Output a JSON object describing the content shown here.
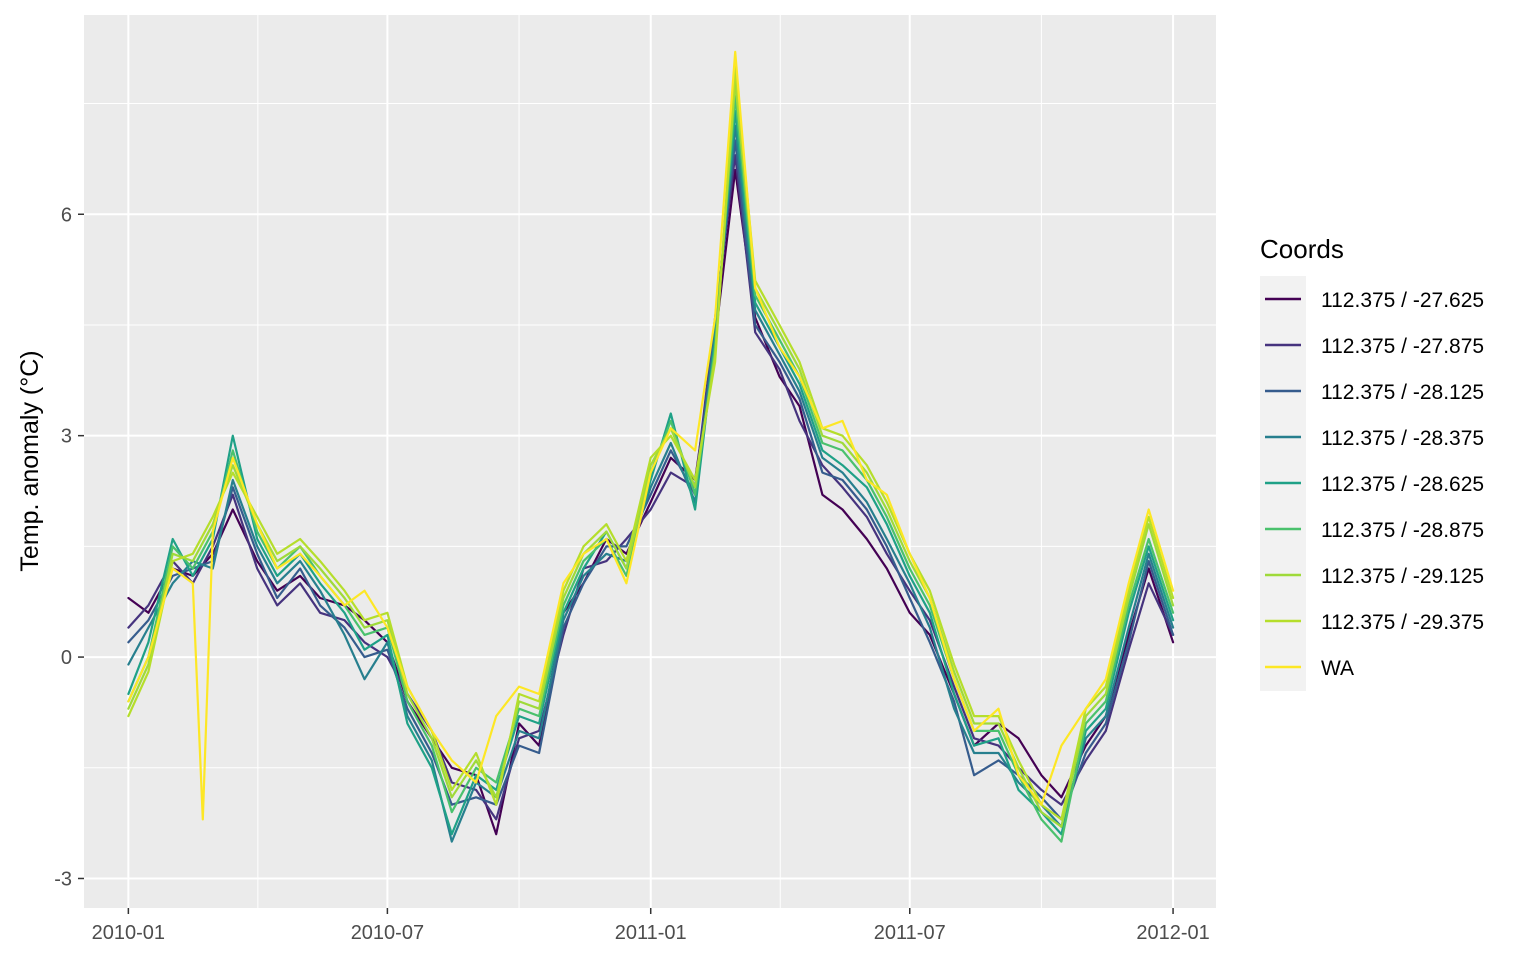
{
  "chart_data": {
    "type": "line",
    "title": "",
    "xlabel": "",
    "ylabel": "Temp. anomaly (°C)",
    "x_ticks": [
      "2010-01",
      "2010-07",
      "2011-01",
      "2011-07",
      "2012-01"
    ],
    "y_ticks": [
      "-3",
      "0",
      "3",
      "6"
    ],
    "xlim": [
      "2009-12-01",
      "2012-01-31"
    ],
    "ylim": [
      -3.4,
      8.7
    ],
    "grid": true,
    "legend": {
      "title": "Coords",
      "position": "right"
    },
    "series": [
      {
        "name": "112.375 / -27.625",
        "color": "#440154",
        "x": [
          "2010-01-01",
          "2010-01-15",
          "2010-02-01",
          "2010-02-15",
          "2010-03-01",
          "2010-03-15",
          "2010-04-01",
          "2010-04-15",
          "2010-05-01",
          "2010-05-15",
          "2010-06-01",
          "2010-06-15",
          "2010-07-01",
          "2010-07-15",
          "2010-08-01",
          "2010-08-15",
          "2010-09-01",
          "2010-09-15",
          "2010-10-01",
          "2010-10-15",
          "2010-11-01",
          "2010-11-15",
          "2010-12-01",
          "2010-12-15",
          "2011-01-01",
          "2011-01-15",
          "2011-02-01",
          "2011-02-15",
          "2011-03-01",
          "2011-03-15",
          "2011-04-01",
          "2011-04-15",
          "2011-05-01",
          "2011-05-15",
          "2011-06-01",
          "2011-06-15",
          "2011-07-01",
          "2011-07-15",
          "2011-08-01",
          "2011-08-15",
          "2011-09-01",
          "2011-09-15",
          "2011-10-01",
          "2011-10-15",
          "2011-11-01",
          "2011-11-15",
          "2011-12-01",
          "2011-12-15",
          "2012-01-01"
        ],
        "y": [
          0.8,
          0.6,
          1.2,
          1.1,
          1.4,
          2.0,
          1.3,
          0.9,
          1.1,
          0.8,
          0.7,
          0.5,
          0.2,
          -0.6,
          -1.1,
          -1.5,
          -1.6,
          -2.4,
          -0.9,
          -1.2,
          0.6,
          1.0,
          1.6,
          1.4,
          2.1,
          2.7,
          2.4,
          4.3,
          6.6,
          4.6,
          3.8,
          3.4,
          2.2,
          2.0,
          1.6,
          1.2,
          0.6,
          0.3,
          -0.5,
          -1.2,
          -0.9,
          -1.1,
          -1.6,
          -1.9,
          -1.2,
          -0.8,
          0.3,
          1.2,
          0.2
        ]
      },
      {
        "name": "112.375 / -27.875",
        "color": "#46337e",
        "x": [
          "2010-01-01",
          "2010-01-15",
          "2010-02-01",
          "2010-02-15",
          "2010-03-01",
          "2010-03-15",
          "2010-04-01",
          "2010-04-15",
          "2010-05-01",
          "2010-05-15",
          "2010-06-01",
          "2010-06-15",
          "2010-07-01",
          "2010-07-15",
          "2010-08-01",
          "2010-08-15",
          "2010-09-01",
          "2010-09-15",
          "2010-10-01",
          "2010-10-15",
          "2010-11-01",
          "2010-11-15",
          "2010-12-01",
          "2010-12-15",
          "2011-01-01",
          "2011-01-15",
          "2011-02-01",
          "2011-02-15",
          "2011-03-01",
          "2011-03-15",
          "2011-04-01",
          "2011-04-15",
          "2011-05-01",
          "2011-05-15",
          "2011-06-01",
          "2011-06-15",
          "2011-07-01",
          "2011-07-15",
          "2011-08-01",
          "2011-08-15",
          "2011-09-01",
          "2011-09-15",
          "2011-10-01",
          "2011-10-15",
          "2011-11-01",
          "2011-11-15",
          "2011-12-01",
          "2011-12-15",
          "2012-01-01"
        ],
        "y": [
          0.4,
          0.7,
          1.3,
          1.0,
          1.5,
          2.2,
          1.2,
          0.7,
          1.0,
          0.6,
          0.5,
          0.2,
          0.0,
          -0.5,
          -1.0,
          -1.7,
          -1.8,
          -2.2,
          -1.1,
          -1.0,
          0.3,
          1.2,
          1.3,
          1.6,
          2.0,
          2.5,
          2.3,
          4.6,
          6.8,
          4.4,
          3.9,
          3.2,
          2.6,
          2.3,
          1.9,
          1.4,
          0.9,
          0.5,
          -0.4,
          -1.1,
          -1.2,
          -1.5,
          -1.8,
          -2.0,
          -1.4,
          -1.0,
          0.1,
          1.0,
          0.3
        ]
      },
      {
        "name": "112.375 / -28.125",
        "color": "#365c8d",
        "x": [
          "2010-01-01",
          "2010-01-15",
          "2010-02-01",
          "2010-02-15",
          "2010-03-01",
          "2010-03-15",
          "2010-04-01",
          "2010-04-15",
          "2010-05-01",
          "2010-05-15",
          "2010-06-01",
          "2010-06-15",
          "2010-07-01",
          "2010-07-15",
          "2010-08-01",
          "2010-08-15",
          "2010-09-01",
          "2010-09-15",
          "2010-10-01",
          "2010-10-15",
          "2010-11-01",
          "2010-11-15",
          "2010-12-01",
          "2010-12-15",
          "2011-01-01",
          "2011-01-15",
          "2011-02-01",
          "2011-02-15",
          "2011-03-01",
          "2011-03-15",
          "2011-04-01",
          "2011-04-15",
          "2011-05-01",
          "2011-05-15",
          "2011-06-01",
          "2011-06-15",
          "2011-07-01",
          "2011-07-15",
          "2011-08-01",
          "2011-08-15",
          "2011-09-01",
          "2011-09-15",
          "2011-10-01",
          "2011-10-15",
          "2011-11-01",
          "2011-11-15",
          "2011-12-01",
          "2011-12-15",
          "2012-01-01"
        ],
        "y": [
          0.2,
          0.5,
          1.1,
          1.2,
          1.3,
          2.3,
          1.4,
          0.8,
          1.2,
          0.7,
          0.4,
          0.0,
          0.1,
          -0.7,
          -1.3,
          -2.0,
          -1.9,
          -2.0,
          -1.2,
          -1.3,
          0.4,
          1.0,
          1.5,
          1.5,
          2.2,
          2.8,
          2.2,
          4.5,
          7.0,
          4.5,
          4.0,
          3.5,
          2.5,
          2.4,
          2.0,
          1.5,
          0.8,
          0.2,
          -0.6,
          -1.6,
          -1.4,
          -1.6,
          -1.9,
          -2.2,
          -1.3,
          -0.9,
          0.2,
          1.3,
          0.3
        ]
      },
      {
        "name": "112.375 / -28.375",
        "color": "#277f8e",
        "x": [
          "2010-01-01",
          "2010-01-15",
          "2010-02-01",
          "2010-02-15",
          "2010-03-01",
          "2010-03-15",
          "2010-04-01",
          "2010-04-15",
          "2010-05-01",
          "2010-05-15",
          "2010-06-01",
          "2010-06-15",
          "2010-07-01",
          "2010-07-15",
          "2010-08-01",
          "2010-08-15",
          "2010-09-01",
          "2010-09-15",
          "2010-10-01",
          "2010-10-15",
          "2010-11-01",
          "2010-11-15",
          "2010-12-01",
          "2010-12-15",
          "2011-01-01",
          "2011-01-15",
          "2011-02-01",
          "2011-02-15",
          "2011-03-01",
          "2011-03-15",
          "2011-04-01",
          "2011-04-15",
          "2011-05-01",
          "2011-05-15",
          "2011-06-01",
          "2011-06-15",
          "2011-07-01",
          "2011-07-15",
          "2011-08-01",
          "2011-08-15",
          "2011-09-01",
          "2011-09-15",
          "2011-10-01",
          "2011-10-15",
          "2011-11-01",
          "2011-11-15",
          "2011-12-01",
          "2011-12-15",
          "2012-01-01"
        ],
        "y": [
          -0.1,
          0.4,
          1.0,
          1.3,
          1.2,
          2.4,
          1.5,
          1.0,
          1.3,
          0.9,
          0.3,
          -0.3,
          0.2,
          -0.8,
          -1.4,
          -2.5,
          -1.7,
          -1.9,
          -1.0,
          -1.1,
          0.5,
          1.1,
          1.4,
          1.3,
          2.3,
          2.9,
          2.1,
          4.4,
          7.2,
          4.7,
          4.1,
          3.6,
          2.7,
          2.5,
          2.1,
          1.6,
          1.0,
          0.4,
          -0.7,
          -1.3,
          -1.3,
          -1.7,
          -2.0,
          -2.3,
          -1.1,
          -0.8,
          0.4,
          1.4,
          0.4
        ]
      },
      {
        "name": "112.375 / -28.625",
        "color": "#1fa187",
        "x": [
          "2010-01-01",
          "2010-01-15",
          "2010-02-01",
          "2010-02-15",
          "2010-03-01",
          "2010-03-15",
          "2010-04-01",
          "2010-04-15",
          "2010-05-01",
          "2010-05-15",
          "2010-06-01",
          "2010-06-15",
          "2010-07-01",
          "2010-07-15",
          "2010-08-01",
          "2010-08-15",
          "2010-09-01",
          "2010-09-15",
          "2010-10-01",
          "2010-10-15",
          "2010-11-01",
          "2010-11-15",
          "2010-12-01",
          "2010-12-15",
          "2011-01-01",
          "2011-01-15",
          "2011-02-01",
          "2011-02-15",
          "2011-03-01",
          "2011-03-15",
          "2011-04-01",
          "2011-04-15",
          "2011-05-01",
          "2011-05-15",
          "2011-06-01",
          "2011-06-15",
          "2011-07-01",
          "2011-07-15",
          "2011-08-01",
          "2011-08-15",
          "2011-09-01",
          "2011-09-15",
          "2011-10-01",
          "2011-10-15",
          "2011-11-01",
          "2011-11-15",
          "2011-12-01",
          "2011-12-15",
          "2012-01-01"
        ],
        "y": [
          -0.5,
          0.2,
          1.6,
          1.1,
          1.6,
          3.0,
          1.6,
          1.1,
          1.4,
          1.0,
          0.6,
          0.1,
          0.3,
          -0.9,
          -1.5,
          -2.4,
          -1.6,
          -1.8,
          -0.8,
          -0.9,
          0.6,
          1.2,
          1.7,
          1.2,
          2.4,
          3.3,
          2.0,
          4.3,
          7.4,
          4.8,
          4.2,
          3.7,
          2.8,
          2.6,
          2.3,
          1.8,
          1.1,
          0.6,
          -0.5,
          -1.2,
          -1.1,
          -1.8,
          -2.1,
          -2.4,
          -1.0,
          -0.7,
          0.6,
          1.5,
          0.5
        ]
      },
      {
        "name": "112.375 / -28.875",
        "color": "#4ac16d",
        "x": [
          "2010-01-01",
          "2010-01-15",
          "2010-02-01",
          "2010-02-15",
          "2010-03-01",
          "2010-03-15",
          "2010-04-01",
          "2010-04-15",
          "2010-05-01",
          "2010-05-15",
          "2010-06-01",
          "2010-06-15",
          "2010-07-01",
          "2010-07-15",
          "2010-08-01",
          "2010-08-15",
          "2010-09-01",
          "2010-09-15",
          "2010-10-01",
          "2010-10-15",
          "2010-11-01",
          "2010-11-15",
          "2010-12-01",
          "2010-12-15",
          "2011-01-01",
          "2011-01-15",
          "2011-02-01",
          "2011-02-15",
          "2011-03-01",
          "2011-03-15",
          "2011-04-01",
          "2011-04-15",
          "2011-05-01",
          "2011-05-15",
          "2011-06-01",
          "2011-06-15",
          "2011-07-01",
          "2011-07-15",
          "2011-08-01",
          "2011-08-15",
          "2011-09-01",
          "2011-09-15",
          "2011-10-01",
          "2011-10-15",
          "2011-11-01",
          "2011-11-15",
          "2011-12-01",
          "2011-12-15",
          "2012-01-01"
        ],
        "y": [
          -0.6,
          0.0,
          1.5,
          1.2,
          1.7,
          2.8,
          1.7,
          1.2,
          1.5,
          1.1,
          0.7,
          0.3,
          0.4,
          -0.6,
          -1.2,
          -2.1,
          -1.5,
          -1.7,
          -0.7,
          -0.8,
          0.7,
          1.3,
          1.6,
          1.1,
          2.5,
          3.2,
          2.2,
          4.2,
          7.6,
          4.9,
          4.3,
          3.8,
          2.9,
          2.8,
          2.4,
          1.9,
          1.2,
          0.7,
          -0.3,
          -1.0,
          -1.0,
          -1.6,
          -2.2,
          -2.5,
          -0.9,
          -0.6,
          0.7,
          1.6,
          0.6
        ]
      },
      {
        "name": "112.375 / -29.125",
        "color": "#9fda3a",
        "x": [
          "2010-01-01",
          "2010-01-15",
          "2010-02-01",
          "2010-02-15",
          "2010-03-01",
          "2010-03-15",
          "2010-04-01",
          "2010-04-15",
          "2010-05-01",
          "2010-05-15",
          "2010-06-01",
          "2010-06-15",
          "2010-07-01",
          "2010-07-15",
          "2010-08-01",
          "2010-08-15",
          "2010-09-01",
          "2010-09-15",
          "2010-10-01",
          "2010-10-15",
          "2010-11-01",
          "2010-11-15",
          "2010-12-01",
          "2010-12-15",
          "2011-01-01",
          "2011-01-15",
          "2011-02-01",
          "2011-02-15",
          "2011-03-01",
          "2011-03-15",
          "2011-04-01",
          "2011-04-15",
          "2011-05-01",
          "2011-05-15",
          "2011-06-01",
          "2011-06-15",
          "2011-07-01",
          "2011-07-15",
          "2011-08-01",
          "2011-08-15",
          "2011-09-01",
          "2011-09-15",
          "2011-10-01",
          "2011-10-15",
          "2011-11-01",
          "2011-11-15",
          "2011-12-01",
          "2011-12-15",
          "2012-01-01"
        ],
        "y": [
          -0.7,
          -0.1,
          1.4,
          1.3,
          1.8,
          2.6,
          1.8,
          1.3,
          1.5,
          1.2,
          0.8,
          0.4,
          0.5,
          -0.5,
          -1.1,
          -1.9,
          -1.4,
          -1.9,
          -0.6,
          -0.7,
          0.8,
          1.4,
          1.7,
          1.2,
          2.6,
          3.1,
          2.3,
          4.1,
          7.8,
          5.0,
          4.4,
          3.9,
          3.0,
          2.9,
          2.5,
          2.0,
          1.3,
          0.8,
          -0.2,
          -0.9,
          -0.9,
          -1.5,
          -2.1,
          -2.3,
          -0.8,
          -0.5,
          0.8,
          1.8,
          0.7
        ]
      },
      {
        "name": "112.375 / -29.375",
        "color": "#b5de2b",
        "x": [
          "2010-01-01",
          "2010-01-15",
          "2010-02-01",
          "2010-02-15",
          "2010-03-01",
          "2010-03-15",
          "2010-04-01",
          "2010-04-15",
          "2010-05-01",
          "2010-05-15",
          "2010-06-01",
          "2010-06-15",
          "2010-07-01",
          "2010-07-15",
          "2010-08-01",
          "2010-08-15",
          "2010-09-01",
          "2010-09-15",
          "2010-10-01",
          "2010-10-15",
          "2010-11-01",
          "2010-11-15",
          "2010-12-01",
          "2010-12-15",
          "2011-01-01",
          "2011-01-15",
          "2011-02-01",
          "2011-02-15",
          "2011-03-01",
          "2011-03-15",
          "2011-04-01",
          "2011-04-15",
          "2011-05-01",
          "2011-05-15",
          "2011-06-01",
          "2011-06-15",
          "2011-07-01",
          "2011-07-15",
          "2011-08-01",
          "2011-08-15",
          "2011-09-01",
          "2011-09-15",
          "2011-10-01",
          "2011-10-15",
          "2011-11-01",
          "2011-11-15",
          "2011-12-01",
          "2011-12-15",
          "2012-01-01"
        ],
        "y": [
          -0.8,
          -0.2,
          1.3,
          1.4,
          1.9,
          2.5,
          1.9,
          1.4,
          1.6,
          1.3,
          0.9,
          0.5,
          0.6,
          -0.4,
          -1.0,
          -1.8,
          -1.3,
          -2.0,
          -0.5,
          -0.6,
          0.9,
          1.5,
          1.8,
          1.3,
          2.7,
          3.0,
          2.4,
          4.0,
          8.0,
          5.1,
          4.5,
          4.0,
          3.1,
          3.0,
          2.6,
          2.1,
          1.4,
          0.9,
          -0.1,
          -0.8,
          -0.8,
          -1.4,
          -2.0,
          -2.2,
          -0.7,
          -0.4,
          0.9,
          1.9,
          0.8
        ]
      },
      {
        "name": "WA",
        "color": "#fde725",
        "x": [
          "2010-01-01",
          "2010-01-15",
          "2010-02-01",
          "2010-02-15",
          "2010-02-22",
          "2010-03-01",
          "2010-03-15",
          "2010-04-01",
          "2010-04-15",
          "2010-05-01",
          "2010-05-15",
          "2010-06-01",
          "2010-06-15",
          "2010-07-01",
          "2010-07-15",
          "2010-08-01",
          "2010-08-15",
          "2010-09-01",
          "2010-09-15",
          "2010-10-01",
          "2010-10-15",
          "2010-11-01",
          "2010-11-15",
          "2010-12-01",
          "2010-12-15",
          "2011-01-01",
          "2011-01-15",
          "2011-02-01",
          "2011-02-15",
          "2011-03-01",
          "2011-03-15",
          "2011-04-01",
          "2011-04-15",
          "2011-05-01",
          "2011-05-15",
          "2011-06-01",
          "2011-06-15",
          "2011-07-01",
          "2011-07-15",
          "2011-08-01",
          "2011-08-15",
          "2011-09-01",
          "2011-09-15",
          "2011-10-01",
          "2011-10-15",
          "2011-11-01",
          "2011-11-15",
          "2011-12-01",
          "2011-12-15",
          "2012-01-01"
        ],
        "y": [
          -0.6,
          0.0,
          1.2,
          1.0,
          -2.2,
          1.7,
          2.7,
          1.8,
          1.2,
          1.4,
          1.1,
          0.7,
          0.9,
          0.4,
          -0.4,
          -1.0,
          -1.4,
          -1.7,
          -0.8,
          -0.4,
          -0.5,
          1.0,
          1.4,
          1.6,
          1.0,
          2.5,
          3.1,
          2.8,
          4.6,
          8.2,
          5.0,
          4.2,
          3.8,
          3.1,
          3.2,
          2.4,
          2.2,
          1.4,
          0.8,
          -0.3,
          -1.0,
          -0.7,
          -1.6,
          -2.0,
          -1.2,
          -0.7,
          -0.3,
          1.0,
          2.0,
          0.9
        ]
      }
    ]
  }
}
